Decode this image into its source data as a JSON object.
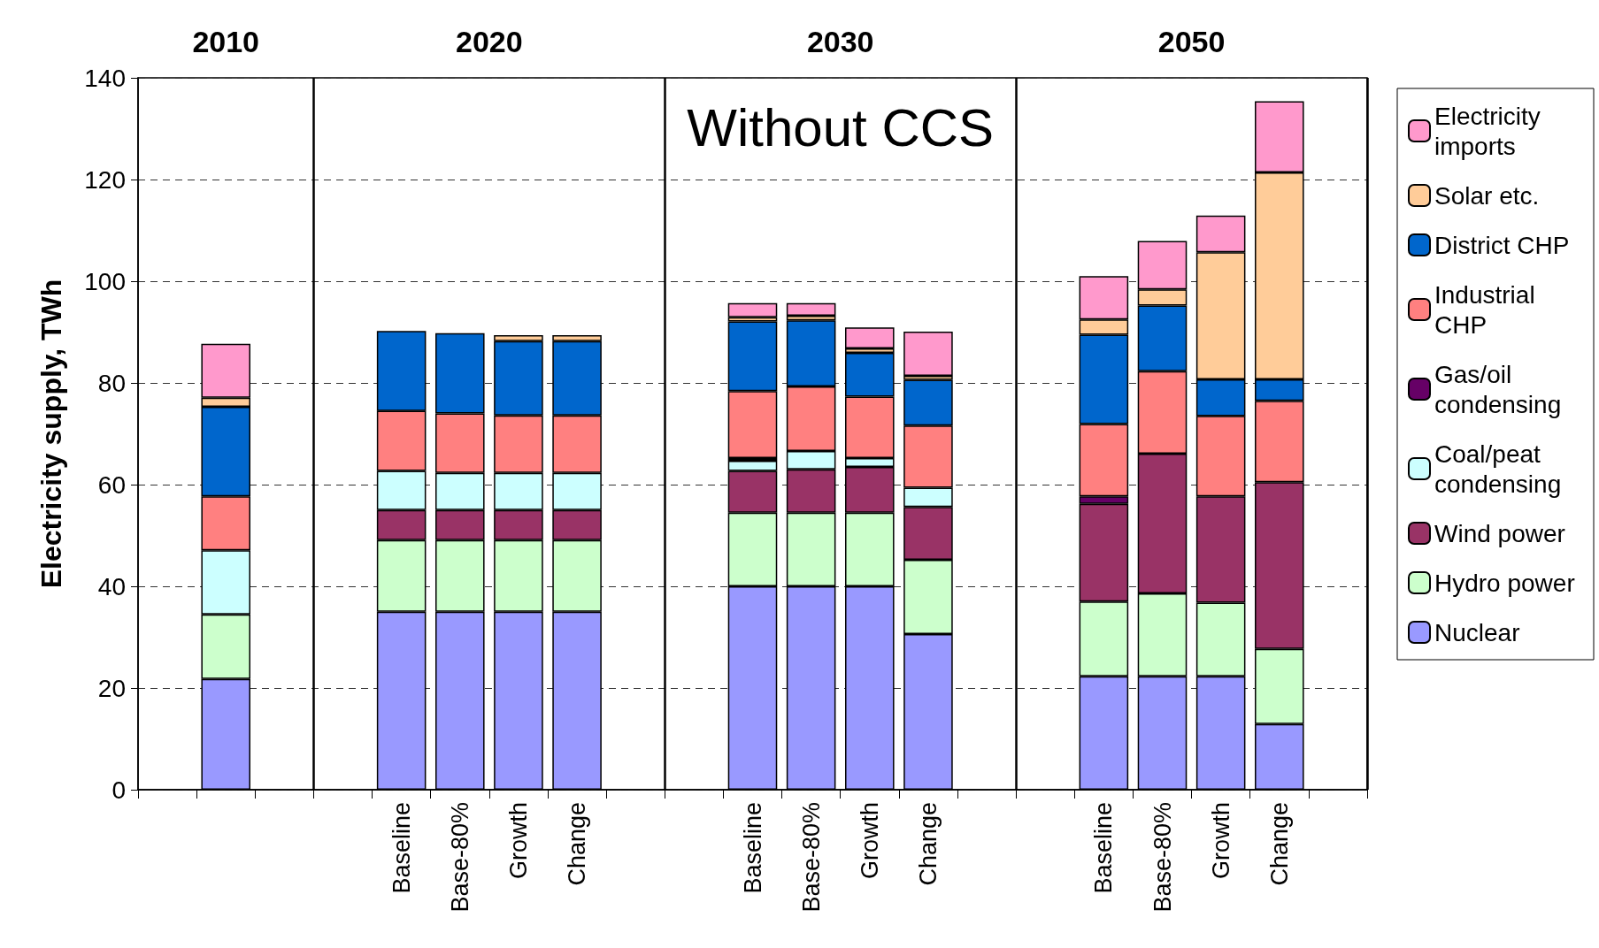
{
  "chart_data": {
    "type": "bar",
    "stacked": true,
    "ylabel": "Electricity supply, TWh",
    "annotations": [
      "2010",
      "2020",
      "2030",
      "2050",
      "Without CCS"
    ],
    "categories": [
      null,
      null,
      null,
      null,
      "Baseline",
      "Base-80%",
      "Growth",
      "Change",
      null,
      null,
      "Baseline",
      "Base-80%",
      "Growth",
      "Change",
      null,
      null,
      "Baseline",
      "Base-80%",
      "Growth",
      "Change",
      null
    ],
    "series": [
      {
        "name": "Nuclear",
        "color": "#9999ff",
        "values": [
          null,
          21.8,
          null,
          null,
          35,
          35,
          35,
          35,
          null,
          null,
          40,
          40,
          40,
          30.6,
          null,
          null,
          22.3,
          22.3,
          22.3,
          12.9,
          null
        ]
      },
      {
        "name": "Hydro power",
        "color": "#ccffcc",
        "values": [
          null,
          12.7,
          null,
          null,
          14.1,
          14.1,
          14.1,
          14.1,
          null,
          null,
          14.5,
          14.5,
          14.5,
          14.6,
          null,
          null,
          14.7,
          16.3,
          14.5,
          14.8,
          null
        ]
      },
      {
        "name": "Wind power",
        "color": "#993366",
        "values": [
          null,
          null,
          null,
          null,
          5.9,
          5.9,
          5.9,
          5.9,
          null,
          null,
          8.2,
          8.5,
          9.0,
          10.4,
          null,
          null,
          19.2,
          27.5,
          20.9,
          32.8,
          null
        ]
      },
      {
        "name": "Coal/peat condensing",
        "color": "#ccffff",
        "values": [
          null,
          12.6,
          null,
          null,
          7.7,
          7.3,
          7.3,
          7.3,
          null,
          null,
          2.0,
          3.6,
          1.7,
          3.8,
          null,
          null,
          null,
          null,
          null,
          null,
          null
        ]
      },
      {
        "name": "Gas/oil condensing",
        "color": "#660066",
        "values": [
          null,
          null,
          null,
          null,
          null,
          null,
          null,
          null,
          null,
          null,
          0.5,
          null,
          null,
          null,
          null,
          null,
          1.5,
          null,
          null,
          null,
          null
        ]
      },
      {
        "name": "Industrial CHP",
        "color": "#ff8080",
        "values": [
          null,
          10.6,
          null,
          null,
          11.8,
          11.7,
          11.3,
          11.3,
          null,
          null,
          13.2,
          12.7,
          12.1,
          12.2,
          null,
          null,
          14.2,
          16.2,
          15.8,
          16.0,
          null
        ]
      },
      {
        "name": "District CHP",
        "color": "#0066cc",
        "values": [
          null,
          17.6,
          null,
          null,
          15.7,
          15.8,
          14.6,
          14.6,
          null,
          null,
          13.7,
          13.0,
          8.6,
          9.0,
          null,
          null,
          17.6,
          12.9,
          7.2,
          4.2,
          null
        ]
      },
      {
        "name": "Solar etc.",
        "color": "#ffcc99",
        "values": [
          null,
          1.8,
          null,
          null,
          null,
          null,
          1.2,
          1.2,
          null,
          null,
          0.8,
          0.9,
          0.9,
          0.8,
          null,
          null,
          3.0,
          3.2,
          25.0,
          40.7,
          null
        ]
      },
      {
        "name": "Electricity imports",
        "color": "#ff99cc",
        "values": [
          null,
          10.6,
          null,
          null,
          null,
          null,
          null,
          null,
          null,
          null,
          2.8,
          2.5,
          4.1,
          8.7,
          null,
          null,
          8.5,
          9.5,
          7.2,
          14.0,
          null
        ]
      }
    ],
    "ylim": [
      0,
      140
    ],
    "yticks": [
      0,
      20,
      40,
      60,
      80,
      100,
      120,
      140
    ],
    "grid": "y",
    "legend": "right"
  }
}
